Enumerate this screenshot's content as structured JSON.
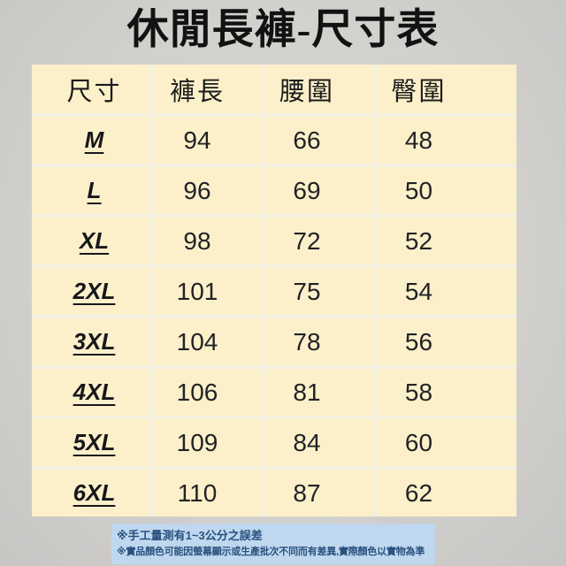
{
  "page": {
    "title": "休閒長褲-尺寸表"
  },
  "chart_data": {
    "type": "table",
    "title": "休閒長褲-尺寸表",
    "columns": [
      "尺寸",
      "褲長",
      "腰圍",
      "臀圍"
    ],
    "rows": [
      [
        "M",
        94,
        66,
        48
      ],
      [
        "L",
        96,
        69,
        50
      ],
      [
        "XL",
        98,
        72,
        52
      ],
      [
        "2XL",
        101,
        75,
        54
      ],
      [
        "3XL",
        104,
        78,
        56
      ],
      [
        "4XL",
        106,
        81,
        58
      ],
      [
        "5XL",
        109,
        84,
        60
      ],
      [
        "6XL",
        110,
        87,
        62
      ]
    ],
    "annotations": [
      "※手工量測有1~3公分之誤差",
      "※實品顏色可能因螢幕顯示或生產批次不同而有差異,實際顏色以實物為準"
    ],
    "legend_position": "none",
    "grid": true
  },
  "colors": {
    "page_background": "#d2d1ce",
    "cell_background": "#fcf0ca",
    "grid_line": "#f4f0e0",
    "title_text": "#121212",
    "cell_text": "#222226",
    "notes_background": "#bfd8ef",
    "notes_text": "#29517e"
  }
}
